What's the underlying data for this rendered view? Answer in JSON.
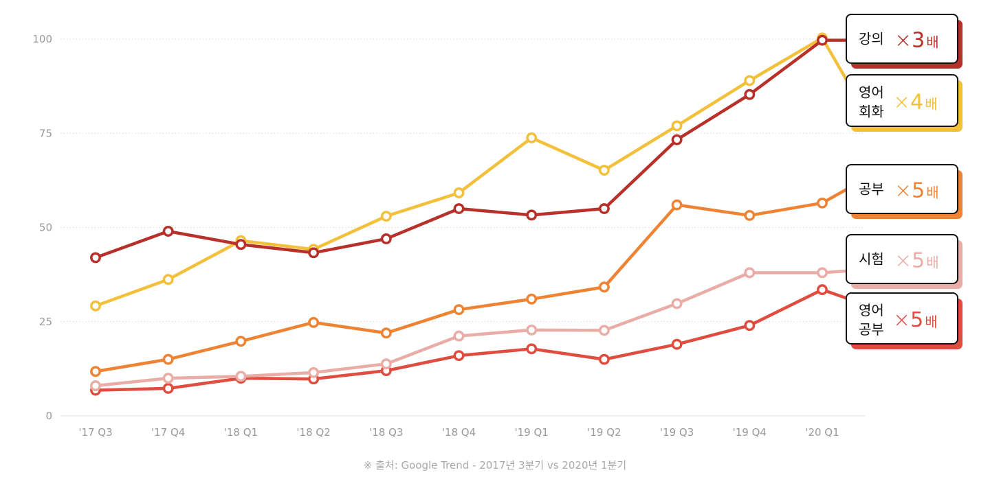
{
  "chart_data": {
    "type": "line",
    "categories": [
      "'17 Q3",
      "'17 Q4",
      "'18 Q1",
      "'18 Q2",
      "'18 Q3",
      "'18 Q4",
      "'19 Q1",
      "'19 Q2",
      "'19 Q3",
      "'19 Q4",
      "'20 Q1"
    ],
    "ylim": [
      0,
      100
    ],
    "yticks": [
      "0",
      "25",
      "50",
      "75",
      "100"
    ],
    "grid": true,
    "series": [
      {
        "key": "lecture",
        "name": [
          "강의"
        ],
        "multiplier": "3",
        "unit": "배",
        "color": "#b8302a",
        "values": [
          42,
          49,
          45.5,
          43.3,
          47,
          55,
          53.3,
          55,
          73.3,
          85.3,
          99.7
        ],
        "end_value": 99.7
      },
      {
        "key": "conversation",
        "name": [
          "영어",
          "회화"
        ],
        "multiplier": "4",
        "unit": "배",
        "color": "#f2c03b",
        "values": [
          29.2,
          36.2,
          46.5,
          44.2,
          53,
          59.2,
          73.8,
          65.2,
          77,
          89,
          100.3
        ],
        "end_value": 88
      },
      {
        "key": "study",
        "name": [
          "공부"
        ],
        "multiplier": "5",
        "unit": "배",
        "color": "#ee8333",
        "values": [
          11.8,
          15,
          19.8,
          24.8,
          22,
          28.2,
          31,
          34.2,
          56,
          53.2,
          56.5
        ],
        "end_value": 60.5
      },
      {
        "key": "exam",
        "name": [
          "시험"
        ],
        "multiplier": "5",
        "unit": "배",
        "color": "#eaaca6",
        "values": [
          8,
          10,
          10.5,
          11.5,
          13.8,
          21.2,
          22.8,
          22.7,
          29.8,
          38,
          38
        ],
        "end_value": 38.5
      },
      {
        "key": "english-study",
        "name": [
          "영어",
          "공부"
        ],
        "multiplier": "5",
        "unit": "배",
        "color": "#de4d40",
        "values": [
          6.8,
          7.3,
          10,
          9.8,
          12,
          16,
          17.8,
          15,
          19,
          24,
          33.5
        ],
        "end_value": 31
      }
    ]
  },
  "labels": {
    "multiply_sign": "×"
  },
  "source": "※ 출처: Google Trend - 2017년 3분기 vs 2020년 1분기"
}
